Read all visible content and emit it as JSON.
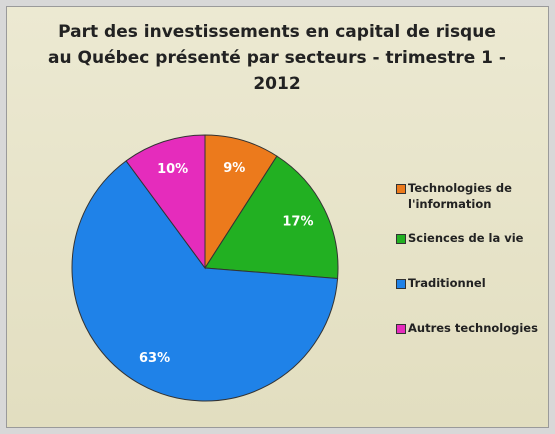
{
  "chart_data": {
    "type": "pie",
    "title": "Part des investissements en capital de risque au Québec présenté par secteurs - trimestre 1 - 2012",
    "categories": [
      "Technologies de l'information",
      "Sciences de la vie",
      "Traditionnel",
      "Autres technologies"
    ],
    "values": [
      9,
      17,
      63,
      10
    ],
    "value_labels": [
      "9%",
      "17%",
      "63%",
      "10%"
    ],
    "colors": [
      "#ec7a1c",
      "#22b022",
      "#1f82e8",
      "#e52cbc"
    ],
    "legend": "right"
  }
}
